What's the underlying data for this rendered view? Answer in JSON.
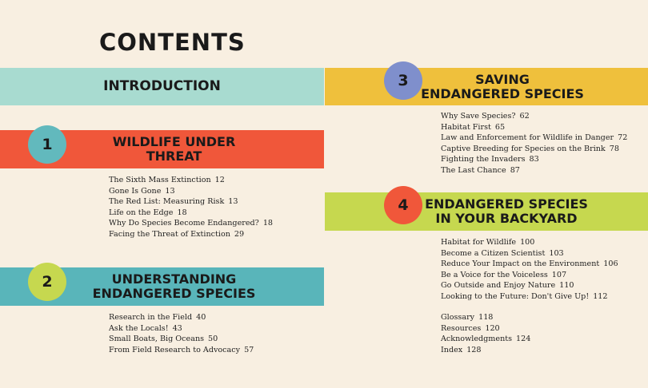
{
  "title": "CONTENTS",
  "introduction": {
    "label": "INTRODUCTION"
  },
  "chapters": [
    {
      "number": "1",
      "title": "WILDLIFE UNDER\nTHREAT",
      "entries": [
        {
          "text": "The Sixth Mass Extinction",
          "page": "12"
        },
        {
          "text": "Gone Is Gone",
          "page": "13"
        },
        {
          "text": "The Red List: Measuring Risk",
          "page": "13"
        },
        {
          "text": "Life on the Edge",
          "page": "18"
        },
        {
          "text": "Why Do Species Become Endangered?",
          "page": "18"
        },
        {
          "text": "Facing the Threat of Extinction",
          "page": "29"
        }
      ]
    },
    {
      "number": "2",
      "title": "UNDERSTANDING\nENDANGERED SPECIES",
      "entries": [
        {
          "text": "Research in the Field",
          "page": "40"
        },
        {
          "text": "Ask the Locals!",
          "page": "43"
        },
        {
          "text": "Small Boats, Big Oceans",
          "page": "50"
        },
        {
          "text": "From Field Research to Advocacy",
          "page": "57"
        }
      ]
    },
    {
      "number": "3",
      "title": "SAVING\nENDANGERED SPECIES",
      "entries": [
        {
          "text": "Why Save Species?",
          "page": "62"
        },
        {
          "text": "Habitat First",
          "page": "65"
        },
        {
          "text": "Law and Enforcement for Wildlife in Danger",
          "page": "72"
        },
        {
          "text": "Captive Breeding for Species on the Brink",
          "page": "78"
        },
        {
          "text": "Fighting the Invaders",
          "page": "83"
        },
        {
          "text": "The Last Chance",
          "page": "87"
        }
      ]
    },
    {
      "number": "4",
      "title": "ENDANGERED SPECIES\nIN YOUR BACKYARD",
      "entries": [
        {
          "text": "Habitat for Wildlife",
          "page": "100"
        },
        {
          "text": "Become a Citizen Scientist",
          "page": "103"
        },
        {
          "text": "Reduce Your Impact on the Environment",
          "page": "106"
        },
        {
          "text": "Be a Voice for the Voiceless",
          "page": "107"
        },
        {
          "text": "Go Outside and Enjoy Nature",
          "page": "110"
        },
        {
          "text": "Looking to the Future: Don't Give Up!",
          "page": "112"
        }
      ]
    }
  ],
  "back_matter": [
    {
      "text": "Glossary",
      "page": "118"
    },
    {
      "text": "Resources",
      "page": "120"
    },
    {
      "text": "Acknowledgments",
      "page": "124"
    },
    {
      "text": "Index",
      "page": "128"
    }
  ],
  "colors": {
    "background": "#f8efe1",
    "intro_band": "#a8dbd0",
    "chapter1_band": "#f0573a",
    "chapter2_band": "#59b5ba",
    "chapter3_band": "#efc03c",
    "chapter4_band": "#c6d84f"
  }
}
